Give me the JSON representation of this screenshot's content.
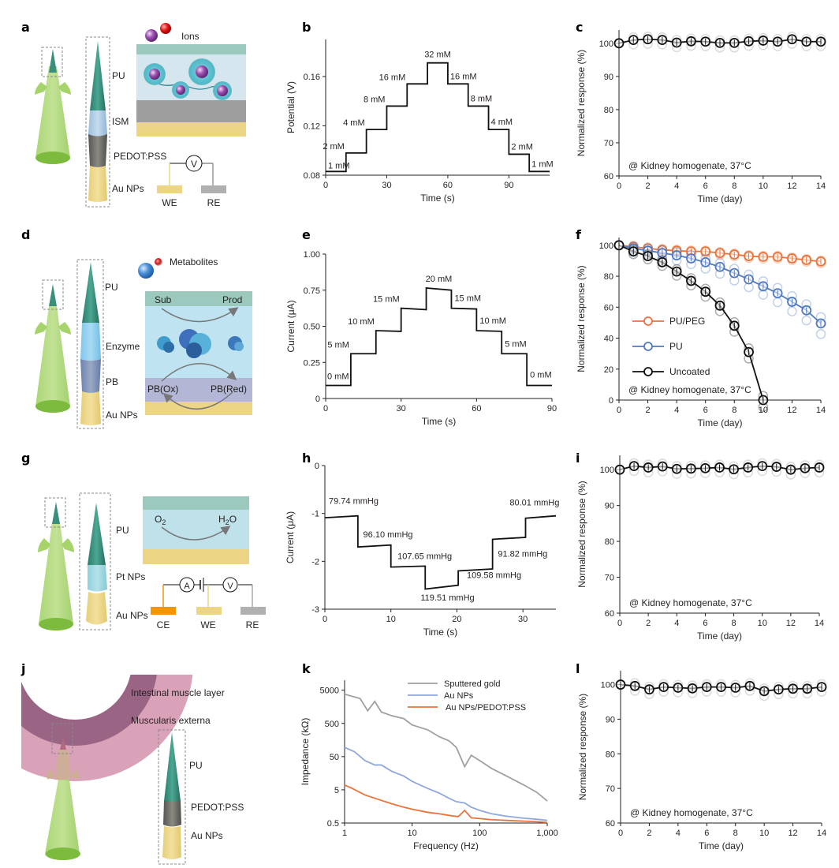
{
  "panels": {
    "a": {
      "label": "a",
      "layers": [
        "PU",
        "ISM",
        "PEDOT:PSS",
        "Au NPs"
      ],
      "legend": "Ions",
      "electrodes": [
        "WE",
        "RE"
      ],
      "meter": "V"
    },
    "d": {
      "label": "d",
      "layers": [
        "PU",
        "Enzyme",
        "PB",
        "Au NPs"
      ],
      "legend": "Metabolites",
      "reaction_top": [
        "Sub",
        "Prod"
      ],
      "reaction_bottom": [
        "PB(Ox)",
        "PB(Red)"
      ]
    },
    "g": {
      "label": "g",
      "layers": [
        "PU",
        "Pt NPs",
        "Au NPs"
      ],
      "reaction": [
        "O2",
        "H2O"
      ],
      "electrodes": [
        "CE",
        "WE",
        "RE"
      ],
      "meters": [
        "A",
        "V"
      ]
    },
    "j": {
      "label": "j",
      "tissue": [
        "Intestinal muscle layer",
        "Muscularis externa"
      ],
      "layers": [
        "PU",
        "PEDOT:PSS",
        "Au NPs"
      ]
    },
    "b": {
      "label": "b"
    },
    "c": {
      "label": "c"
    },
    "e": {
      "label": "e"
    },
    "f": {
      "label": "f"
    },
    "h": {
      "label": "h"
    },
    "i": {
      "label": "i"
    },
    "k": {
      "label": "k"
    },
    "l": {
      "label": "l"
    }
  },
  "colors": {
    "orange": "#e8743b",
    "blue": "#4f7ac2",
    "black": "#111111",
    "gray": "#a0a0a0",
    "au_nps_line": "#8fa9dc",
    "pedot_line": "#e8743b",
    "gold": "#ecd585",
    "pu": "#2e8b7a",
    "green": "#8cc63f"
  },
  "chart_data": [
    {
      "id": "b",
      "type": "line",
      "title": "",
      "xlabel": "Time (s)",
      "ylabel": "Potential (V)",
      "xlim": [
        0,
        110
      ],
      "ylim": [
        0.08,
        0.19
      ],
      "xticks": [
        0,
        30,
        60,
        90
      ],
      "yticks": [
        0.08,
        0.12,
        0.16
      ],
      "ytick_labels": [
        "0.08",
        "0.12",
        "0.16"
      ],
      "steps": [
        {
          "t0": 0,
          "t1": 10,
          "v": 0.083,
          "label": "1 mM"
        },
        {
          "t0": 10,
          "t1": 20,
          "v": 0.098,
          "label": "2 mM"
        },
        {
          "t0": 20,
          "t1": 30,
          "v": 0.117,
          "label": "4 mM"
        },
        {
          "t0": 30,
          "t1": 40,
          "v": 0.136,
          "label": "8 mM"
        },
        {
          "t0": 40,
          "t1": 50,
          "v": 0.154,
          "label": "16 mM"
        },
        {
          "t0": 50,
          "t1": 60,
          "v": 0.171,
          "label": "32 mM"
        },
        {
          "t0": 60,
          "t1": 70,
          "v": 0.154,
          "label": "16 mM"
        },
        {
          "t0": 70,
          "t1": 80,
          "v": 0.136,
          "label": "8 mM"
        },
        {
          "t0": 80,
          "t1": 90,
          "v": 0.117,
          "label": "4 mM"
        },
        {
          "t0": 90,
          "t1": 100,
          "v": 0.097,
          "label": "2 mM"
        },
        {
          "t0": 100,
          "t1": 110,
          "v": 0.083,
          "label": "1 mM"
        }
      ]
    },
    {
      "id": "c",
      "type": "line",
      "xlabel": "Time (day)",
      "ylabel": "Normalized response (%)",
      "xlim": [
        0,
        14
      ],
      "ylim": [
        60,
        104
      ],
      "xticks": [
        0,
        2,
        4,
        6,
        8,
        10,
        12,
        14
      ],
      "yticks": [
        60,
        70,
        80,
        90,
        100
      ],
      "annotation": "@ Kidney homogenate, 37°C",
      "series": [
        {
          "name": "response",
          "x": [
            0,
            1,
            2,
            3,
            4,
            5,
            6,
            7,
            8,
            9,
            10,
            11,
            12,
            13,
            14
          ],
          "y": [
            100,
            101,
            101.2,
            101,
            100.2,
            100.6,
            100.5,
            100.1,
            100.1,
            100.6,
            100.8,
            100.5,
            101.2,
            100.5,
            100.5
          ]
        }
      ]
    },
    {
      "id": "e",
      "type": "line",
      "xlabel": "Time (s)",
      "ylabel": "Current (μA)",
      "xlim": [
        0,
        90
      ],
      "ylim": [
        0,
        1.0
      ],
      "xticks": [
        0,
        30,
        60,
        90
      ],
      "yticks": [
        0,
        0.25,
        0.5,
        0.75,
        1.0
      ],
      "ytick_labels": [
        "0",
        "0.25",
        "0.50",
        "0.75",
        "1.00"
      ],
      "steps": [
        {
          "t0": 0,
          "t1": 10,
          "v0": 0.09,
          "v1": 0.09,
          "label": "0 mM"
        },
        {
          "t0": 10,
          "t1": 20,
          "v0": 0.31,
          "v1": 0.31,
          "label": "5 mM"
        },
        {
          "t0": 20,
          "t1": 30,
          "v0": 0.47,
          "v1": 0.465,
          "label": "10 mM"
        },
        {
          "t0": 30,
          "t1": 40,
          "v0": 0.625,
          "v1": 0.615,
          "label": "15 mM"
        },
        {
          "t0": 40,
          "t1": 50,
          "v0": 0.765,
          "v1": 0.75,
          "label": "20 mM"
        },
        {
          "t0": 50,
          "t1": 60,
          "v0": 0.625,
          "v1": 0.62,
          "label": "15 mM"
        },
        {
          "t0": 60,
          "t1": 70,
          "v0": 0.47,
          "v1": 0.465,
          "label": "10 mM"
        },
        {
          "t0": 70,
          "t1": 80,
          "v0": 0.31,
          "v1": 0.31,
          "label": "5 mM"
        },
        {
          "t0": 80,
          "t1": 90,
          "v0": 0.09,
          "v1": 0.09,
          "label": "0 mM"
        }
      ]
    },
    {
      "id": "f",
      "type": "line",
      "xlabel": "Time (day)",
      "ylabel": "Normalized response (%)",
      "xlim": [
        0,
        14
      ],
      "ylim": [
        0,
        105
      ],
      "xticks": [
        0,
        2,
        4,
        6,
        8,
        10,
        12,
        14
      ],
      "yticks": [
        0,
        20,
        40,
        60,
        80,
        100
      ],
      "annotation": "@ Kidney homogenate, 37°C",
      "legend": "middle-left",
      "series": [
        {
          "name": "PU/PEG",
          "color": "#e8743b",
          "x": [
            0,
            1,
            2,
            3,
            4,
            5,
            6,
            7,
            8,
            9,
            10,
            11,
            12,
            13,
            14
          ],
          "y": [
            100,
            99,
            98,
            97,
            96.5,
            96,
            96,
            95,
            94,
            93,
            92.5,
            92.5,
            91.5,
            90.5,
            89.5
          ]
        },
        {
          "name": "PU",
          "color": "#4f7ac2",
          "x": [
            0,
            1,
            2,
            3,
            4,
            5,
            6,
            7,
            8,
            9,
            10,
            11,
            12,
            13,
            14
          ],
          "y": [
            100,
            98,
            96.5,
            95,
            93.5,
            91.5,
            89,
            86,
            82,
            78,
            73.5,
            69,
            63.5,
            58,
            49.5
          ]
        },
        {
          "name": "Uncoated",
          "color": "#111111",
          "x": [
            0,
            1,
            2,
            3,
            4,
            5,
            6,
            7,
            8,
            9,
            10
          ],
          "y": [
            100,
            96,
            93,
            89,
            83,
            77,
            70,
            61,
            48,
            31,
            0
          ]
        }
      ]
    },
    {
      "id": "h",
      "type": "line",
      "xlabel": "Time (s)",
      "ylabel": "Current (μA)",
      "xlim": [
        0,
        35
      ],
      "ylim": [
        -3,
        0
      ],
      "xticks": [
        0,
        10,
        20,
        30
      ],
      "yticks": [
        -3,
        -2,
        -1,
        0
      ],
      "steps": [
        {
          "t0": 0,
          "t1": 5,
          "v0": -1.09,
          "v1": -1.05,
          "label": "79.74 mmHg"
        },
        {
          "t0": 5,
          "t1": 10,
          "v0": -1.7,
          "v1": -1.66,
          "label": "96.10 mmHg"
        },
        {
          "t0": 10,
          "t1": 15.2,
          "v0": -2.12,
          "v1": -2.1,
          "label": "107.65 mmHg"
        },
        {
          "t0": 15.2,
          "t1": 20.2,
          "v0": -2.58,
          "v1": -2.5,
          "label": "119.51 mmHg"
        },
        {
          "t0": 20.2,
          "t1": 25.4,
          "v0": -2.2,
          "v1": -2.16,
          "label": "109.58 mmHg"
        },
        {
          "t0": 25.4,
          "t1": 30.4,
          "v0": -1.54,
          "v1": -1.5,
          "label": "91.82 mmHg"
        },
        {
          "t0": 30.4,
          "t1": 35,
          "v0": -1.1,
          "v1": -1.05,
          "label": "80.01 mmHg"
        }
      ]
    },
    {
      "id": "i",
      "type": "line",
      "xlabel": "Time (day)",
      "ylabel": "Normalized response (%)",
      "xlim": [
        0,
        14
      ],
      "ylim": [
        60,
        104
      ],
      "xticks": [
        0,
        2,
        4,
        6,
        8,
        10,
        12,
        14
      ],
      "yticks": [
        60,
        70,
        80,
        90,
        100
      ],
      "annotation": "@ Kidney homogenate, 37°C",
      "series": [
        {
          "name": "response",
          "x": [
            0,
            1,
            2,
            3,
            4,
            5,
            6,
            7,
            8,
            9,
            10,
            11,
            12,
            13,
            14
          ],
          "y": [
            100,
            101,
            100.6,
            100.9,
            100.2,
            100.3,
            100.4,
            100.6,
            100.1,
            100.6,
            101,
            100.8,
            100,
            100.4,
            100.6
          ]
        }
      ]
    },
    {
      "id": "k",
      "type": "line",
      "xlabel": "Frequency (Hz)",
      "ylabel": "Impedance (kΩ)",
      "xscale": "log",
      "yscale": "log",
      "xlim": [
        1,
        1000
      ],
      "ylim": [
        0.5,
        10000
      ],
      "xticks": [
        1,
        10,
        100,
        1000
      ],
      "xtick_labels": [
        "1",
        "10",
        "100",
        "1,000"
      ],
      "yticks": [
        0.5,
        5,
        50,
        500,
        5000
      ],
      "ytick_labels": [
        "0.5",
        "5",
        "50",
        "500",
        "5000"
      ],
      "legend": "top-right",
      "series": [
        {
          "name": "Sputtered gold",
          "color": "#a0a0a0",
          "x": [
            1,
            1.7,
            2.2,
            2.8,
            3.5,
            5,
            7.5,
            10,
            17,
            25,
            35,
            45,
            60,
            75,
            100,
            150,
            250,
            450,
            700,
            1000
          ],
          "y": [
            3800,
            2800,
            1200,
            2300,
            1100,
            850,
            700,
            450,
            320,
            200,
            150,
            95,
            25,
            55,
            38,
            22,
            13,
            7,
            4.2,
            2.3
          ]
        },
        {
          "name": "Au NPs",
          "color": "#8fa9dc",
          "x": [
            1,
            1.4,
            2,
            2.8,
            3.5,
            5,
            7.5,
            10,
            17,
            25,
            35,
            45,
            60,
            75,
            100,
            150,
            250,
            450,
            700,
            1000
          ],
          "y": [
            95,
            70,
            38,
            28,
            28,
            18,
            13,
            9,
            5.5,
            4,
            2.8,
            2.2,
            2,
            1.5,
            1.2,
            0.95,
            0.8,
            0.7,
            0.65,
            0.6
          ]
        },
        {
          "name": "Au NPs/PEDOT:PSS",
          "color": "#e8743b",
          "x": [
            1,
            1.3,
            2,
            3.5,
            5,
            7.5,
            10,
            17,
            25,
            35,
            48,
            60,
            75,
            100,
            150,
            250,
            450,
            700,
            1000
          ],
          "y": [
            7,
            5.5,
            3.5,
            2.4,
            1.9,
            1.5,
            1.3,
            1.05,
            0.95,
            0.85,
            0.78,
            1.2,
            0.72,
            0.68,
            0.63,
            0.6,
            0.57,
            0.55,
            0.52
          ]
        }
      ]
    },
    {
      "id": "l",
      "type": "line",
      "xlabel": "Time (day)",
      "ylabel": "Normalized response (%)",
      "xlim": [
        0,
        14
      ],
      "ylim": [
        60,
        104
      ],
      "xticks": [
        0,
        2,
        4,
        6,
        8,
        10,
        12,
        14
      ],
      "yticks": [
        60,
        70,
        80,
        90,
        100
      ],
      "annotation": "@ Kidney homogenate, 37°C",
      "series": [
        {
          "name": "response",
          "x": [
            0,
            1,
            2,
            3,
            4,
            5,
            6,
            7,
            8,
            9,
            10,
            11,
            12,
            13,
            14
          ],
          "y": [
            100,
            99.6,
            98.6,
            99.3,
            99.1,
            98.9,
            99.3,
            99.3,
            99.1,
            99.6,
            98.1,
            98.6,
            98.8,
            98.8,
            99.3
          ]
        }
      ]
    }
  ]
}
